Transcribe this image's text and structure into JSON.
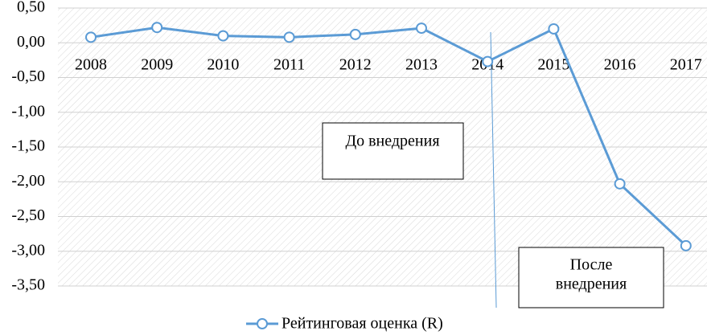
{
  "chart_data": {
    "type": "line",
    "categories": [
      "2008",
      "2009",
      "2010",
      "2011",
      "2012",
      "2013",
      "2014",
      "2015",
      "2016",
      "2017"
    ],
    "series": [
      {
        "name": "Рейтинговая оценка (R)",
        "color": "#5b9bd5",
        "values": [
          0.08,
          0.22,
          0.1,
          0.08,
          0.12,
          0.21,
          -0.27,
          0.2,
          -2.03,
          -2.92
        ]
      }
    ],
    "ylim": [
      -3.5,
      0.5
    ],
    "yticks": [
      {
        "value": 0.5,
        "label": "0,50"
      },
      {
        "value": 0,
        "label": "0,00"
      },
      {
        "value": -0.5,
        "label": "-0,50"
      },
      {
        "value": -1,
        "label": "-1,00"
      },
      {
        "value": -1.5,
        "label": "-1,50"
      },
      {
        "value": -2,
        "label": "-2,00"
      },
      {
        "value": -2.5,
        "label": "-2,50"
      },
      {
        "value": -3,
        "label": "-3,00"
      },
      {
        "value": -3.5,
        "label": "-3,50"
      }
    ],
    "grid": true,
    "legend": "bottom",
    "annotations": [
      "До внедрения",
      [
        "После",
        "внедрения"
      ]
    ]
  }
}
